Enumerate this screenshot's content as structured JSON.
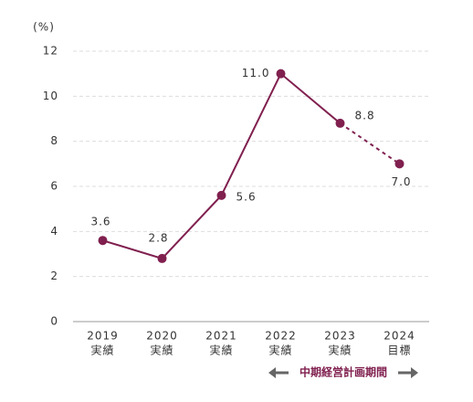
{
  "chart_data": {
    "type": "line",
    "y_unit_label": "(%)",
    "categories": [
      "2019",
      "2020",
      "2021",
      "2022",
      "2023",
      "2024"
    ],
    "category_sublabels": [
      "実績",
      "実績",
      "実績",
      "実績",
      "実績",
      "目標"
    ],
    "values": [
      3.6,
      2.8,
      5.6,
      11.0,
      8.8,
      7.0
    ],
    "value_labels": [
      "3.6",
      "2.8",
      "5.6",
      "11.0",
      "8.8",
      "7.0"
    ],
    "color": "#80204f",
    "dashed_segments": [
      4
    ],
    "ylim": [
      0,
      12
    ],
    "yticks": [
      0,
      2,
      4,
      6,
      8,
      10,
      12
    ],
    "grid": true,
    "annotation": "中期経営計画期間"
  }
}
